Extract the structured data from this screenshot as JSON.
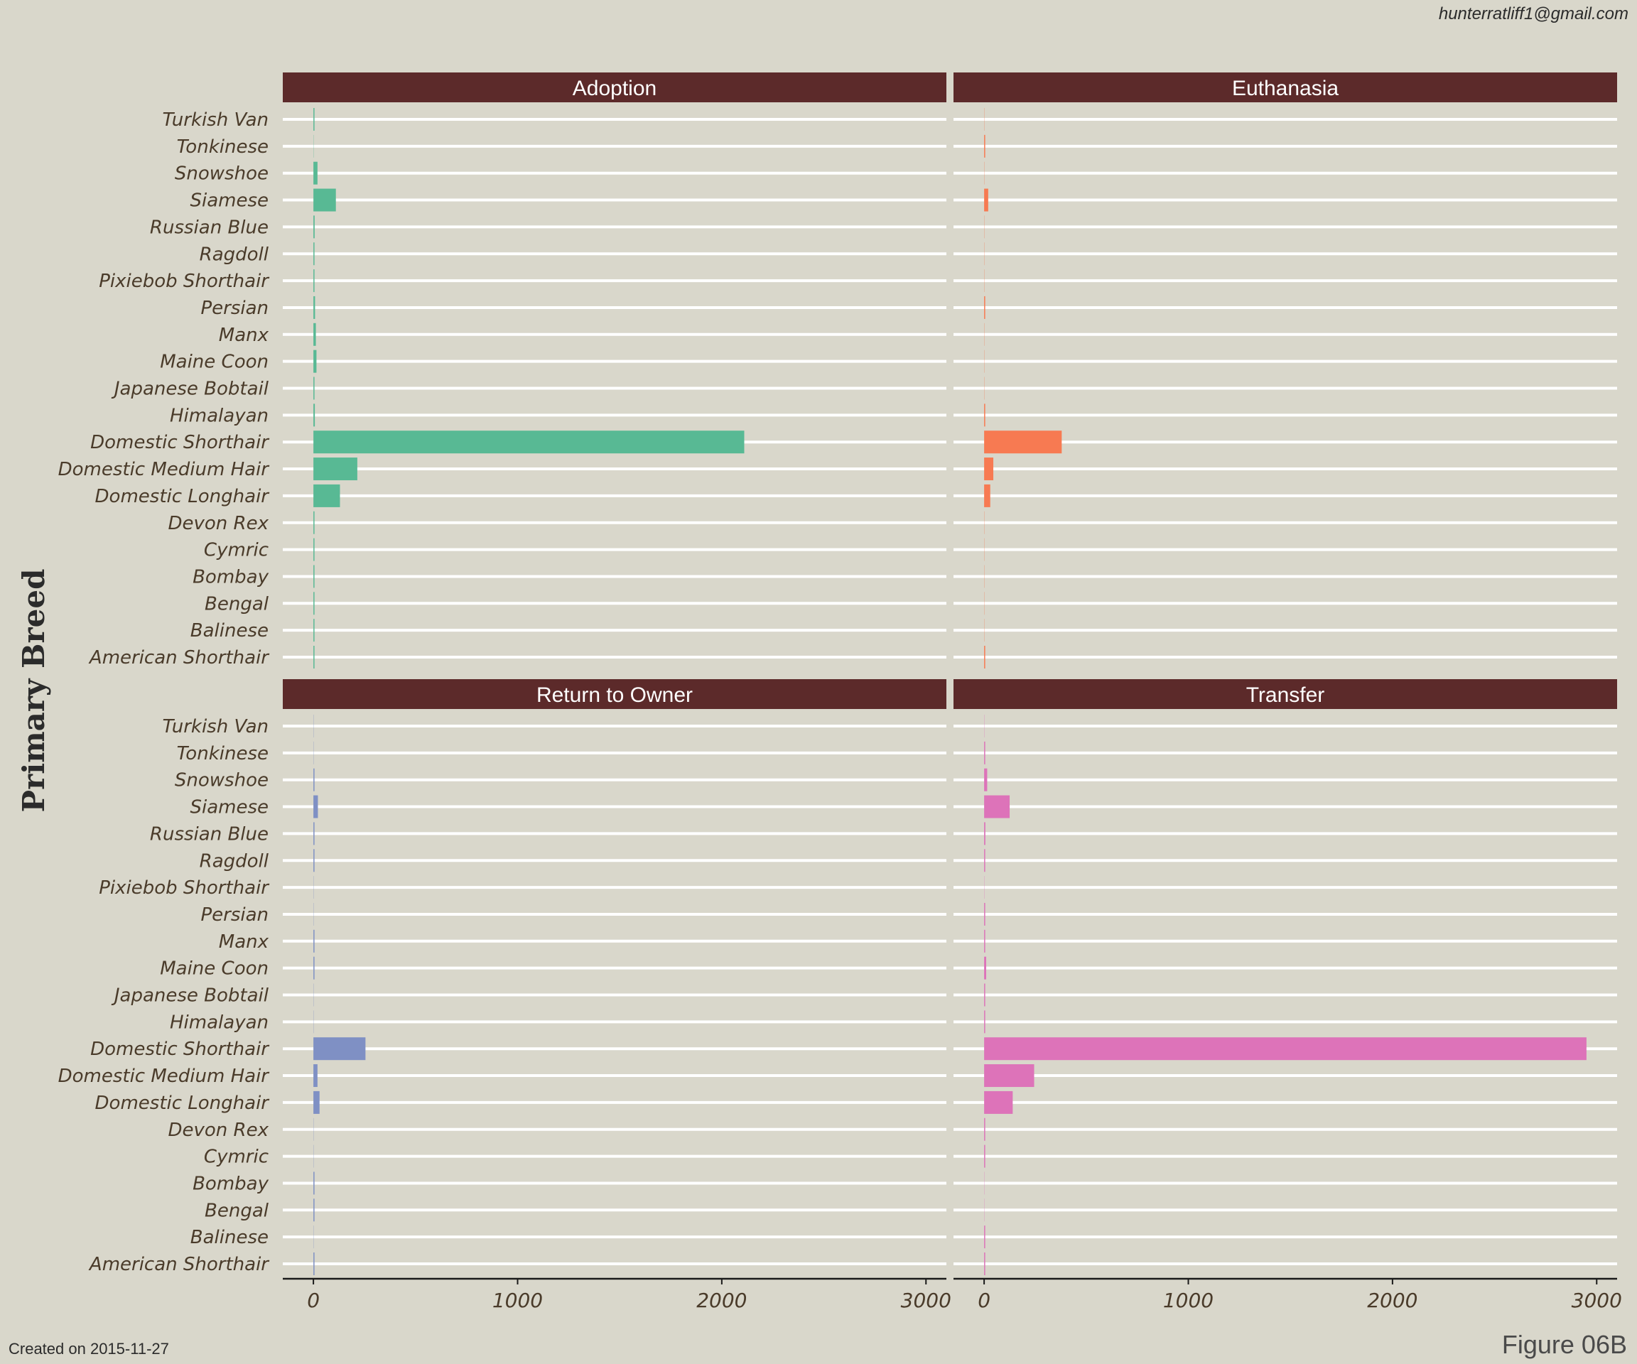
{
  "header": {
    "author": "hunterratliff1@gmail.com"
  },
  "footer": {
    "created": "Created on 2015-11-27",
    "figure_label": "Figure 06B"
  },
  "colors": {
    "background": "#d9d7cb",
    "strip_fill": "#5c2a2a",
    "strip_text": "#ffffff",
    "grid": "#ffffff",
    "tick_text": "#4a3b2a",
    "axis_line": "#1a1a1a"
  },
  "chart_data": {
    "type": "bar",
    "orientation": "horizontal",
    "facet_layout": "2x2",
    "ylabel": "Primary Breed",
    "xlabel": "",
    "xlim": [
      -150,
      3100
    ],
    "xticks": [
      0,
      1000,
      2000,
      3000
    ],
    "grid": true,
    "categories": [
      "Turkish Van",
      "Tonkinese",
      "Snowshoe",
      "Siamese",
      "Russian Blue",
      "Ragdoll",
      "Pixiebob Shorthair",
      "Persian",
      "Manx",
      "Maine Coon",
      "Japanese Bobtail",
      "Himalayan",
      "Domestic Shorthair",
      "Domestic Medium Hair",
      "Domestic Longhair",
      "Devon Rex",
      "Cymric",
      "Bombay",
      "Bengal",
      "Balinese",
      "American Shorthair"
    ],
    "series": [
      {
        "name": "Adoption",
        "color": "#58b994",
        "values": [
          2,
          0,
          20,
          110,
          6,
          4,
          3,
          8,
          12,
          15,
          1,
          7,
          2110,
          215,
          130,
          1,
          1,
          1,
          1,
          5,
          2
        ]
      },
      {
        "name": "Euthanasia",
        "color": "#f77a52",
        "values": [
          0,
          1,
          0,
          20,
          0,
          0,
          0,
          1,
          0,
          0,
          0,
          3,
          380,
          45,
          30,
          0,
          0,
          0,
          0,
          0,
          1
        ]
      },
      {
        "name": "Return to Owner",
        "color": "#7f90c4",
        "values": [
          0,
          0,
          2,
          22,
          3,
          3,
          0,
          0,
          2,
          2,
          0,
          0,
          255,
          20,
          30,
          0,
          0,
          2,
          2,
          0,
          2
        ]
      },
      {
        "name": "Transfer",
        "color": "#dd73b9",
        "values": [
          0,
          2,
          15,
          125,
          6,
          5,
          0,
          1,
          5,
          10,
          1,
          4,
          2950,
          245,
          140,
          2,
          1,
          0,
          0,
          1,
          2
        ]
      }
    ]
  }
}
